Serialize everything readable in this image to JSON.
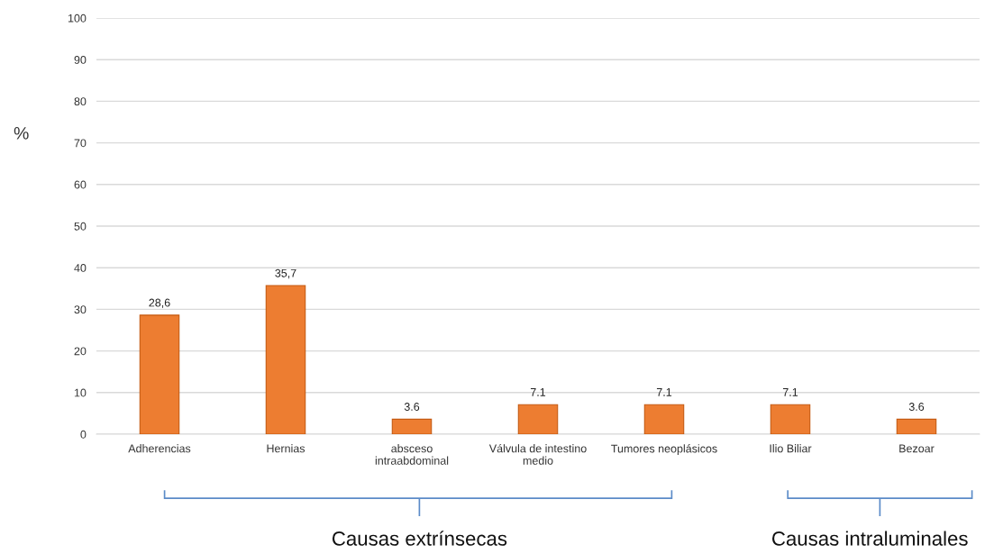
{
  "chart_data": {
    "type": "bar",
    "ylabel": "%",
    "categories": [
      "Adherencias",
      "Hernias",
      "absceso\nintraabdominal",
      "Válvula de intestino\nmedio",
      "Tumores neoplásicos",
      "Ilio Biliar",
      "Bezoar"
    ],
    "values": [
      28.6,
      35.7,
      3.6,
      7.1,
      7.1,
      7.1,
      3.6
    ],
    "value_labels": [
      "28,6",
      "35,7",
      "3.6",
      "7.1",
      "7.1",
      "7.1",
      "3.6"
    ],
    "color": "#ed7d31",
    "ylim": [
      0,
      100
    ],
    "yticks": [
      0,
      10,
      20,
      30,
      40,
      50,
      60,
      70,
      80,
      90,
      100
    ],
    "grid": "y",
    "legend": false,
    "annotations": [
      "Causas extrínsecas",
      "Causas intraluminales"
    ]
  }
}
